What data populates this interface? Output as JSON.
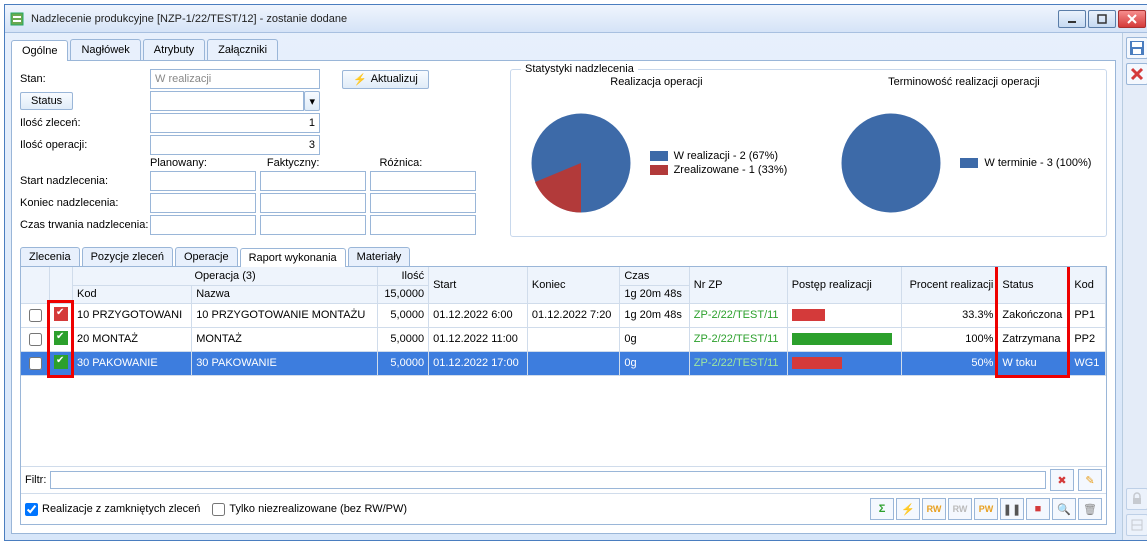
{
  "window": {
    "title": "Nadzlecenie produkcyjne [NZP-1/22/TEST/12] - zostanie dodane"
  },
  "sideToolbar": {
    "save": "save-icon",
    "delete": "delete-icon"
  },
  "mainTabs": [
    "Ogólne",
    "Nagłówek",
    "Atrybuty",
    "Załączniki"
  ],
  "form": {
    "stanLabel": "Stan:",
    "stanValue": "W realizacji",
    "statusBtn": "Status",
    "iloscZlecenLabel": "Ilość zleceń:",
    "iloscZlecenValue": "1",
    "iloscOperacjiLabel": "Ilość operacji:",
    "iloscOperacjiValue": "3",
    "planowanyLabel": "Planowany:",
    "faktycznyLabel": "Faktyczny:",
    "roznicaLabel": "Różnica:",
    "startLabel": "Start nadzlecenia:",
    "koniecLabel": "Koniec nadzlecenia:",
    "czasLabel": "Czas trwania nadzlecenia:",
    "aktualizujBtn": "Aktualizuj"
  },
  "stats": {
    "boxTitle": "Statystyki nadzlecenia",
    "chart1": {
      "title": "Realizacja operacji",
      "slices": [
        {
          "label": "W realizacji - 2 (67%)",
          "value": 67,
          "color": "#3d6aa8"
        },
        {
          "label": "Zrealizowane - 1 (33%)",
          "value": 33,
          "color": "#b23a3a"
        }
      ]
    },
    "chart2": {
      "title": "Terminowość realizacji operacji",
      "slices": [
        {
          "label": "W terminie - 3 (100%)",
          "value": 100,
          "color": "#3d6aa8"
        }
      ]
    }
  },
  "subTabs": [
    "Zlecenia",
    "Pozycje zleceń",
    "Operacje",
    "Raport wykonania",
    "Materiały"
  ],
  "grid": {
    "groupHeader": {
      "operacja": "Operacja (3)",
      "ilosc": "Ilość"
    },
    "groupSubHeader": {
      "kod": "Kod",
      "nazwa": "Nazwa",
      "iloscVal": "15,0000"
    },
    "cols": [
      "Start",
      "Koniec",
      "Czas",
      "Nr ZP",
      "Postęp realizacji",
      "Procent realizacji",
      "Status",
      "Kod"
    ],
    "czasHeader": "1g 20m 48s",
    "rows": [
      {
        "sel": false,
        "iconType": "done",
        "kod": "10 PRZYGOTOWANI",
        "nazwa": "10 PRZYGOTOWANIE MONTAŻU",
        "ilosc": "5,0000",
        "start": "01.12.2022 6:00",
        "koniec": "01.12.2022 7:20",
        "czas": "1g 20m 48s",
        "zp": "ZP-2/22/TEST/11",
        "progColor": "#d43a3a",
        "progPct": 33,
        "procent": "33.3%",
        "status": "Zakończona",
        "kod2": "PP1"
      },
      {
        "sel": false,
        "iconType": "prog",
        "kod": "20 MONTAŻ",
        "nazwa": "MONTAŻ",
        "ilosc": "5,0000",
        "start": "01.12.2022 11:00",
        "koniec": "",
        "czas": "0g",
        "zp": "ZP-2/22/TEST/11",
        "progColor": "#2ca02c",
        "progPct": 100,
        "procent": "100%",
        "status": "Zatrzymana",
        "kod2": "PP2"
      },
      {
        "sel": true,
        "iconType": "prog",
        "kod": "30 PAKOWANIE",
        "nazwa": "30 PAKOWANIE",
        "ilosc": "5,0000",
        "start": "01.12.2022 17:00",
        "koniec": "",
        "czas": "0g",
        "zp": "ZP-2/22/TEST/11",
        "progColor": "#d43a3a",
        "progPct": 50,
        "procent": "50%",
        "status": "W toku",
        "kod2": "WG1"
      }
    ]
  },
  "filter": {
    "label": "Filtr:"
  },
  "bottom": {
    "chk1": "Realizacje z zamkniętych zleceń",
    "chk2": "Tylko niezrealizowane (bez RW/PW)"
  },
  "colors": {
    "blue": "#3d6aa8",
    "red": "#b23a3a",
    "highlight": "#e00"
  }
}
